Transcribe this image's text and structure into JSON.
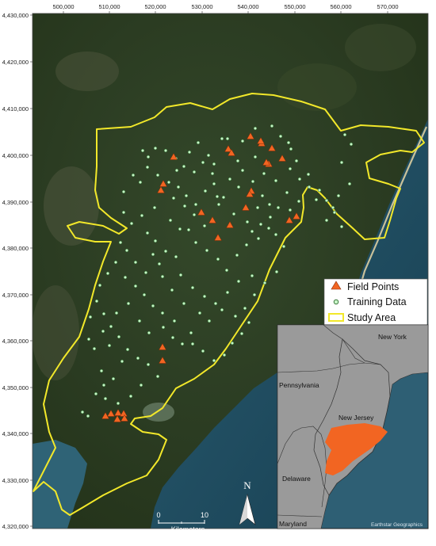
{
  "x_ticks": [
    "500,000",
    "510,000",
    "520,000",
    "530,000",
    "540,000",
    "550,000",
    "560,000",
    "570,000"
  ],
  "y_ticks": [
    "4,430,000",
    "4,420,000",
    "4,410,000",
    "4,400,000",
    "4,390,000",
    "4,380,000",
    "4,370,000",
    "4,360,000",
    "4,350,000",
    "4,340,000",
    "4,330,000",
    "4,320,000"
  ],
  "legend": {
    "field_points": "Field Points",
    "training_data": "Training Data",
    "study_area": "Study Area"
  },
  "inset": {
    "new_york": "New York",
    "pennsylvania": "Pennsylvania",
    "new_jersey": "New Jersey",
    "delaware": "Delaware",
    "maryland": "Maryland",
    "credit": "Earthstar Geographics"
  },
  "scale_bar": {
    "zero": "0",
    "ten": "10",
    "unit": "Kilometers"
  },
  "north_label": "N",
  "colors": {
    "field_point": "#f26522",
    "training_fill": "#c8f5c8",
    "training_stroke": "#1f5f1f",
    "study_area": "#f2e82a",
    "ocean": "#1f4d63",
    "land_dark": "#2a3a1e",
    "inset_land": "#9a9a9a",
    "inset_water": "#2e5f74",
    "highlight": "#f26522"
  },
  "field_points": [
    [
      219,
      198
    ],
    [
      206,
      232
    ],
    [
      203,
      240
    ],
    [
      288,
      188
    ],
    [
      292,
      193
    ],
    [
      316,
      172
    ],
    [
      330,
      181
    ],
    [
      343,
      187
    ],
    [
      356,
      200
    ],
    [
      339,
      207
    ],
    [
      317,
      241
    ],
    [
      315,
      245
    ],
    [
      254,
      268
    ],
    [
      268,
      278
    ],
    [
      290,
      284
    ],
    [
      275,
      300
    ],
    [
      310,
      262
    ],
    [
      365,
      278
    ],
    [
      374,
      273
    ],
    [
      205,
      438
    ],
    [
      205,
      455
    ],
    [
      133,
      525
    ],
    [
      140,
      522
    ],
    [
      149,
      521
    ],
    [
      156,
      522
    ],
    [
      148,
      529
    ],
    [
      157,
      528
    ],
    [
      329,
      178
    ],
    [
      336,
      205
    ]
  ],
  "training_points": [
    [
      180,
      190
    ],
    [
      187,
      198
    ],
    [
      196,
      187
    ],
    [
      209,
      190
    ],
    [
      222,
      200
    ],
    [
      232,
      210
    ],
    [
      239,
      192
    ],
    [
      250,
      180
    ],
    [
      263,
      196
    ],
    [
      280,
      175
    ],
    [
      287,
      175
    ],
    [
      300,
      203
    ],
    [
      306,
      215
    ],
    [
      322,
      198
    ],
    [
      333,
      219
    ],
    [
      354,
      172
    ],
    [
      367,
      188
    ],
    [
      374,
      203
    ],
    [
      366,
      213
    ],
    [
      186,
      211
    ],
    [
      199,
      221
    ],
    [
      213,
      230
    ],
    [
      225,
      236
    ],
    [
      235,
      247
    ],
    [
      247,
      258
    ],
    [
      259,
      241
    ],
    [
      270,
      232
    ],
    [
      282,
      249
    ],
    [
      290,
      226
    ],
    [
      301,
      236
    ],
    [
      319,
      229
    ],
    [
      331,
      247
    ],
    [
      340,
      258
    ],
    [
      351,
      262
    ],
    [
      362,
      243
    ],
    [
      377,
      254
    ],
    [
      389,
      220
    ],
    [
      403,
      240
    ],
    [
      412,
      253
    ],
    [
      420,
      262
    ],
    [
      427,
      247
    ],
    [
      441,
      232
    ],
    [
      431,
      205
    ],
    [
      435,
      170
    ],
    [
      443,
      182
    ],
    [
      156,
      268
    ],
    [
      166,
      282
    ],
    [
      179,
      272
    ],
    [
      186,
      294
    ],
    [
      196,
      304
    ],
    [
      209,
      317
    ],
    [
      222,
      324
    ],
    [
      238,
      290
    ],
    [
      247,
      306
    ],
    [
      261,
      316
    ],
    [
      275,
      327
    ],
    [
      286,
      341
    ],
    [
      299,
      322
    ],
    [
      311,
      309
    ],
    [
      326,
      301
    ],
    [
      339,
      288
    ],
    [
      348,
      296
    ],
    [
      358,
      311
    ],
    [
      349,
      343
    ],
    [
      334,
      357
    ],
    [
      321,
      372
    ],
    [
      309,
      389
    ],
    [
      297,
      399
    ],
    [
      280,
      391
    ],
    [
      264,
      405
    ],
    [
      252,
      395
    ],
    [
      241,
      420
    ],
    [
      230,
      434
    ],
    [
      218,
      426
    ],
    [
      206,
      413
    ],
    [
      193,
      386
    ],
    [
      182,
      372
    ],
    [
      171,
      361
    ],
    [
      158,
      350
    ],
    [
      146,
      331
    ],
    [
      136,
      345
    ],
    [
      126,
      360
    ],
    [
      122,
      380
    ],
    [
      131,
      396
    ],
    [
      140,
      412
    ],
    [
      150,
      425
    ],
    [
      161,
      441
    ],
    [
      174,
      452
    ],
    [
      187,
      460
    ],
    [
      199,
      475
    ],
    [
      143,
      478
    ],
    [
      131,
      486
    ],
    [
      121,
      497
    ],
    [
      133,
      503
    ],
    [
      149,
      509
    ],
    [
      165,
      500
    ],
    [
      178,
      486
    ],
    [
      104,
      520
    ],
    [
      111,
      525
    ],
    [
      168,
      221
    ],
    [
      177,
      230
    ],
    [
      156,
      242
    ],
    [
      152,
      306
    ],
    [
      160,
      316
    ],
    [
      171,
      331
    ],
    [
      184,
      344
    ],
    [
      228,
      347
    ],
    [
      243,
      363
    ],
    [
      258,
      374
    ],
    [
      272,
      383
    ],
    [
      287,
      369
    ],
    [
      301,
      355
    ],
    [
      318,
      348
    ],
    [
      243,
      434
    ],
    [
      256,
      443
    ],
    [
      270,
      455
    ],
    [
      283,
      448
    ],
    [
      293,
      433
    ],
    [
      305,
      421
    ],
    [
      314,
      407
    ],
    [
      217,
      366
    ],
    [
      205,
      349
    ],
    [
      201,
      333
    ],
    [
      193,
      321
    ],
    [
      268,
      219
    ],
    [
      276,
      258
    ],
    [
      258,
      285
    ],
    [
      245,
      271
    ],
    [
      233,
      260
    ],
    [
      219,
      250
    ],
    [
      378,
      226
    ],
    [
      390,
      236
    ],
    [
      399,
      252
    ],
    [
      412,
      278
    ],
    [
      422,
      268
    ],
    [
      431,
      286
    ],
    [
      366,
      265
    ],
    [
      341,
      274
    ],
    [
      329,
      283
    ],
    [
      318,
      292
    ],
    [
      215,
      278
    ],
    [
      227,
      289
    ],
    [
      195,
      262
    ],
    [
      223,
      215
    ],
    [
      245,
      217
    ],
    [
      256,
      205
    ],
    [
      270,
      207
    ],
    [
      306,
      178
    ],
    [
      322,
      162
    ],
    [
      343,
      159
    ],
    [
      364,
      180
    ],
    [
      348,
      228
    ],
    [
      325,
      262
    ],
    [
      274,
      248
    ],
    [
      295,
      270
    ],
    [
      312,
      280
    ],
    [
      138,
      436
    ],
    [
      154,
      456
    ],
    [
      128,
      468
    ],
    [
      119,
      440
    ],
    [
      112,
      428
    ],
    [
      130,
      418
    ],
    [
      147,
      395
    ],
    [
      162,
      383
    ],
    [
      114,
      400
    ],
    [
      176,
      405
    ],
    [
      188,
      420
    ],
    [
      205,
      395
    ],
    [
      220,
      405
    ],
    [
      232,
      383
    ]
  ]
}
